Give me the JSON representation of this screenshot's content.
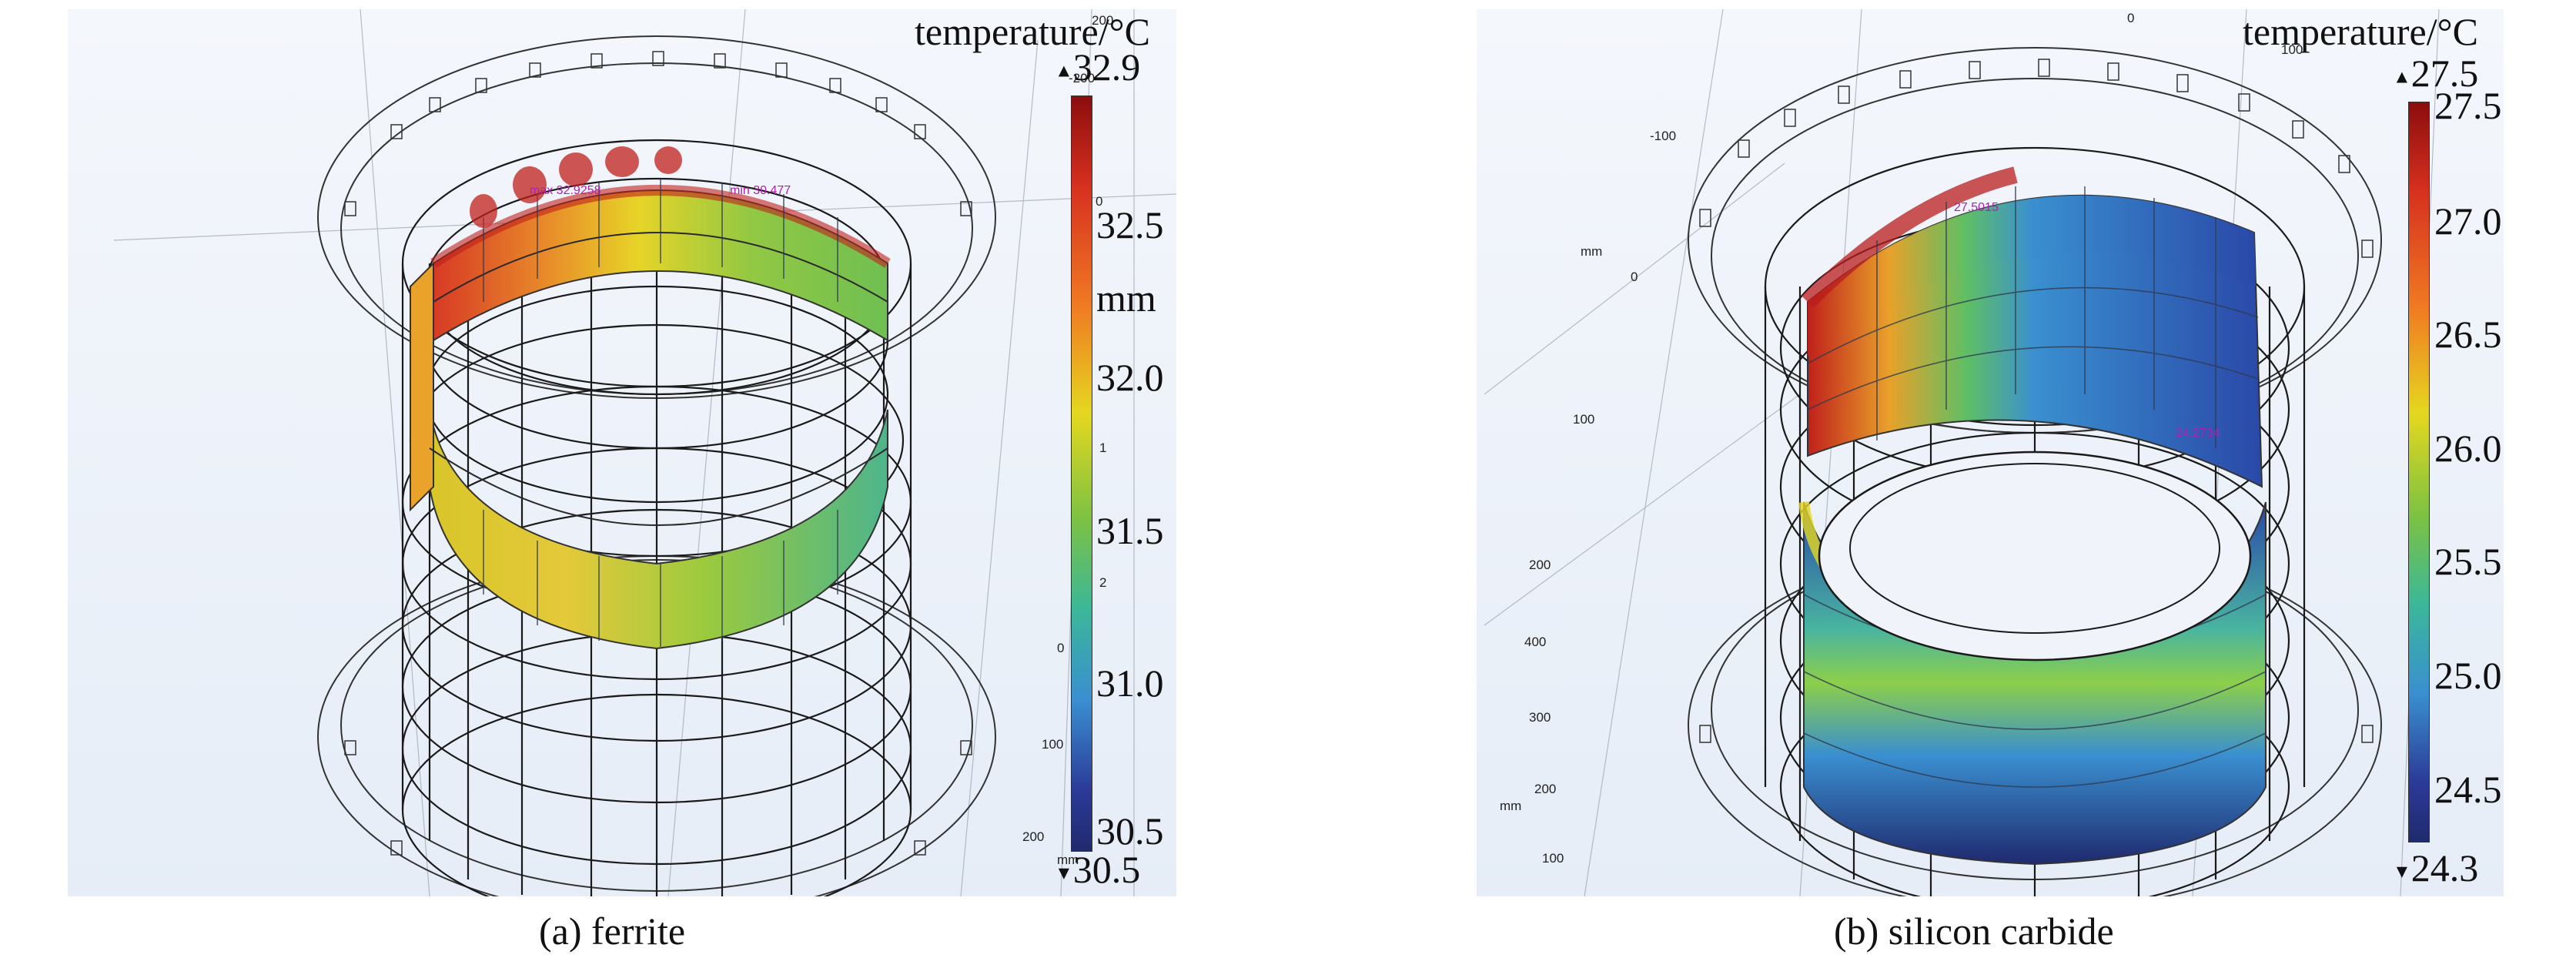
{
  "panel_a": {
    "caption": "(a) ferrite",
    "colorbar_title": "temperature/°C",
    "max_value": "32.9",
    "min_value": "30.5",
    "ticks": [
      "32.5",
      "mm",
      "32.0",
      "31.5",
      "31.0",
      "30.5"
    ],
    "axis_numbers": [
      "-200",
      "0",
      "1",
      "2",
      "0",
      "100",
      "200",
      "mm",
      "200"
    ],
    "probe_labels": [
      "max 32.9258",
      "min 30.477"
    ]
  },
  "panel_b": {
    "caption": "(b) silicon carbide",
    "colorbar_title": "temperature/°C",
    "max_value": "27.5",
    "min_value": "24.3",
    "ticks": [
      "27.5",
      "27.0",
      "26.5",
      "26.0",
      "25.5",
      "25.0",
      "24.5"
    ],
    "axis_numbers": [
      "0",
      "100",
      "-100",
      "mm",
      "0",
      "100",
      "200",
      "400",
      "300",
      "200",
      "mm",
      "100"
    ],
    "probe_labels": [
      "27.5015",
      "24.2734"
    ]
  },
  "colors": {
    "hot": "#c0201b",
    "warm": "#e5d71f",
    "mid": "#7cc242",
    "cool": "#3a8fd0",
    "cold": "#1f2a6e",
    "wire": "#1a1a1a"
  }
}
